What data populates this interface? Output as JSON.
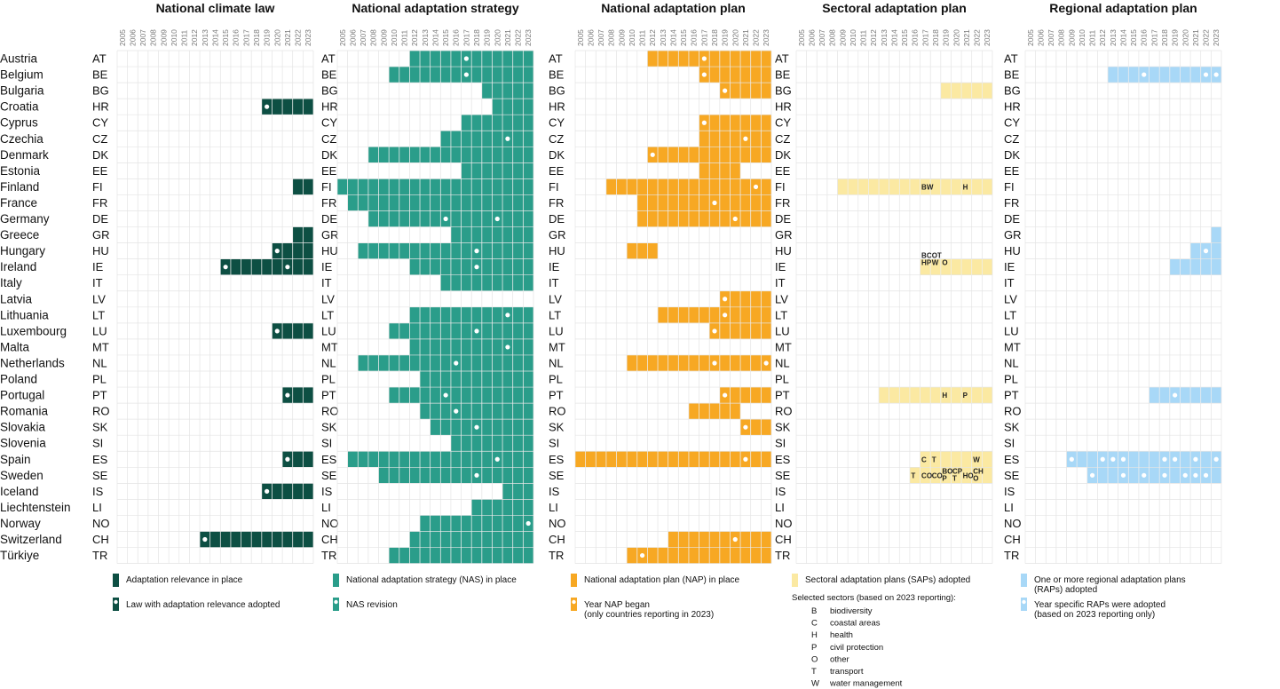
{
  "chart_data": {
    "type": "heatmap",
    "years": [
      2005,
      2006,
      2007,
      2008,
      2009,
      2010,
      2011,
      2012,
      2013,
      2014,
      2015,
      2016,
      2017,
      2018,
      2019,
      2020,
      2021,
      2022,
      2023
    ],
    "countries": [
      {
        "name": "Austria",
        "code": "AT"
      },
      {
        "name": "Belgium",
        "code": "BE"
      },
      {
        "name": "Bulgaria",
        "code": "BG"
      },
      {
        "name": "Croatia",
        "code": "HR"
      },
      {
        "name": "Cyprus",
        "code": "CY"
      },
      {
        "name": "Czechia",
        "code": "CZ"
      },
      {
        "name": "Denmark",
        "code": "DK"
      },
      {
        "name": "Estonia",
        "code": "EE"
      },
      {
        "name": "Finland",
        "code": "FI"
      },
      {
        "name": "France",
        "code": "FR"
      },
      {
        "name": "Germany",
        "code": "DE"
      },
      {
        "name": "Greece",
        "code": "GR"
      },
      {
        "name": "Hungary",
        "code": "HU"
      },
      {
        "name": "Ireland",
        "code": "IE"
      },
      {
        "name": "Italy",
        "code": "IT"
      },
      {
        "name": "Latvia",
        "code": "LV"
      },
      {
        "name": "Lithuania",
        "code": "LT"
      },
      {
        "name": "Luxembourg",
        "code": "LU"
      },
      {
        "name": "Malta",
        "code": "MT"
      },
      {
        "name": "Netherlands",
        "code": "NL"
      },
      {
        "name": "Poland",
        "code": "PL"
      },
      {
        "name": "Portugal",
        "code": "PT"
      },
      {
        "name": "Romania",
        "code": "RO"
      },
      {
        "name": "Slovakia",
        "code": "SK"
      },
      {
        "name": "Slovenia",
        "code": "SI"
      },
      {
        "name": "Spain",
        "code": "ES"
      },
      {
        "name": "Sweden",
        "code": "SE"
      },
      {
        "name": "Iceland",
        "code": "IS"
      },
      {
        "name": "Liechtenstein",
        "code": "LI"
      },
      {
        "name": "Norway",
        "code": "NO"
      },
      {
        "name": "Switzerland",
        "code": "CH"
      },
      {
        "name": "Türkiye",
        "code": "TR"
      }
    ],
    "panels": [
      {
        "title": "National climate law",
        "color": "#0d4f43",
        "dot_color": "#ffffff",
        "spans": {
          "HR": [
            2019,
            2023
          ],
          "FI": [
            2022,
            2023
          ],
          "GR": [
            2022,
            2023
          ],
          "HU": [
            2020,
            2023
          ],
          "IE": [
            2015,
            2023
          ],
          "LU": [
            2020,
            2023
          ],
          "PT": [
            2021,
            2023
          ],
          "ES": [
            2021,
            2023
          ],
          "IS": [
            2019,
            2023
          ],
          "CH": [
            2013,
            2023
          ]
        },
        "dots": {
          "HR": [
            2019
          ],
          "HU": [
            2020
          ],
          "IE": [
            2015,
            2021
          ],
          "LU": [
            2020
          ],
          "PT": [
            2021
          ],
          "ES": [
            2021
          ],
          "IS": [
            2019
          ],
          "CH": [
            2013
          ]
        },
        "legend": {
          "fill_label": "Adaptation relevance in place",
          "dot_label": "Law with adaptation relevance adopted"
        }
      },
      {
        "title": "National adaptation strategy",
        "color": "#2a9d8a",
        "dot_color": "#ffffff",
        "spans": {
          "AT": [
            2012,
            2023
          ],
          "BE": [
            2010,
            2023
          ],
          "BG": [
            2019,
            2023
          ],
          "HR": [
            2020,
            2023
          ],
          "CY": [
            2017,
            2023
          ],
          "CZ": [
            2015,
            2023
          ],
          "DK": [
            2008,
            2023
          ],
          "EE": [
            2017,
            2023
          ],
          "FI": [
            2005,
            2023
          ],
          "FR": [
            2006,
            2023
          ],
          "DE": [
            2008,
            2023
          ],
          "GR": [
            2016,
            2023
          ],
          "HU": [
            2007,
            2023
          ],
          "IE": [
            2012,
            2023
          ],
          "IT": [
            2015,
            2023
          ],
          "LT": [
            2012,
            2023
          ],
          "LU": [
            2010,
            2023
          ],
          "MT": [
            2012,
            2023
          ],
          "NL": [
            2007,
            2023
          ],
          "PL": [
            2013,
            2023
          ],
          "PT": [
            2010,
            2023
          ],
          "RO": [
            2013,
            2023
          ],
          "SK": [
            2014,
            2023
          ],
          "SI": [
            2016,
            2023
          ],
          "ES": [
            2006,
            2023
          ],
          "SE": [
            2009,
            2023
          ],
          "IS": [
            2021,
            2023
          ],
          "LI": [
            2018,
            2023
          ],
          "NO": [
            2013,
            2023
          ],
          "CH": [
            2012,
            2023
          ],
          "TR": [
            2010,
            2023
          ]
        },
        "dots": {
          "AT": [
            2017
          ],
          "BE": [
            2017
          ],
          "CZ": [
            2021
          ],
          "DE": [
            2015,
            2020
          ],
          "HU": [
            2018
          ],
          "IE": [
            2018
          ],
          "LT": [
            2021
          ],
          "LU": [
            2018
          ],
          "MT": [
            2021
          ],
          "NL": [
            2016
          ],
          "PT": [
            2015
          ],
          "RO": [
            2016
          ],
          "SK": [
            2018
          ],
          "ES": [
            2020
          ],
          "SE": [
            2018
          ],
          "NO": [
            2023
          ]
        },
        "legend": {
          "fill_label": "National adaptation strategy (NAS) in place",
          "dot_label": "NAS revision"
        }
      },
      {
        "title": "National adaptation plan",
        "color": "#f7a823",
        "dot_color": "#ffffff",
        "spans": {
          "AT": [
            2012,
            2023
          ],
          "BE": [
            2017,
            2023
          ],
          "BG": [
            2019,
            2023
          ],
          "CY": [
            2017,
            2023
          ],
          "CZ": [
            2017,
            2023
          ],
          "DK": [
            2012,
            2023
          ],
          "EE": [
            2017,
            2020
          ],
          "FI": [
            2008,
            2023
          ],
          "FR": [
            2011,
            2023
          ],
          "DE": [
            2011,
            2023
          ],
          "HU": [
            2010,
            2012
          ],
          "LV": [
            2019,
            2023
          ],
          "LT": [
            2013,
            2023
          ],
          "LU": [
            2018,
            2023
          ],
          "NL": [
            2010,
            2023
          ],
          "PT": [
            2019,
            2023
          ],
          "RO": [
            2016,
            2020
          ],
          "SK": [
            2021,
            2023
          ],
          "ES": [
            2005,
            2023
          ],
          "CH": [
            2014,
            2023
          ],
          "TR": [
            2010,
            2023
          ]
        },
        "dots": {
          "AT": [
            2017
          ],
          "BE": [
            2017
          ],
          "BG": [
            2019
          ],
          "CY": [
            2017
          ],
          "CZ": [
            2021
          ],
          "DK": [
            2012
          ],
          "FI": [
            2022
          ],
          "FR": [
            2018
          ],
          "DE": [
            2020
          ],
          "LV": [
            2019
          ],
          "LT": [
            2019
          ],
          "LU": [
            2018
          ],
          "NL": [
            2018,
            2023
          ],
          "PT": [
            2019
          ],
          "SK": [
            2021
          ],
          "ES": [
            2021
          ],
          "CH": [
            2020
          ],
          "TR": [
            2011
          ]
        },
        "legend": {
          "fill_label": "National adaptation plan (NAP) in place",
          "dot_label": "Year NAP began",
          "dot_label_2": "(only countries reporting in 2023)"
        }
      },
      {
        "title": "Sectoral adaptation plan",
        "color": "#fbe9a2",
        "dot_color": "#ffffff",
        "spans": {
          "BG": [
            2019,
            2023
          ],
          "FI": [
            2009,
            2023
          ],
          "IE": [
            2017,
            2023
          ],
          "PT": [
            2013,
            2023
          ],
          "ES": [
            2017,
            2023
          ],
          "SE": [
            2016,
            2023
          ]
        },
        "dots": {},
        "sector_labels": [
          {
            "code": "FI",
            "year": 2017,
            "line": 0,
            "text": "BW"
          },
          {
            "code": "FI",
            "year": 2021,
            "line": 0,
            "text": "H"
          },
          {
            "code": "IE",
            "year": 2017,
            "line": 1,
            "text": "BC"
          },
          {
            "code": "IE",
            "year": 2018,
            "line": 1,
            "text": "OT"
          },
          {
            "code": "IE",
            "year": 2017,
            "line": 2,
            "text": "HP"
          },
          {
            "code": "IE",
            "year": 2018,
            "line": 2,
            "text": "W"
          },
          {
            "code": "IE",
            "year": 2019,
            "line": 2,
            "text": "O"
          },
          {
            "code": "PT",
            "year": 2019,
            "line": 0,
            "text": "H"
          },
          {
            "code": "PT",
            "year": 2021,
            "line": 0,
            "text": "P"
          },
          {
            "code": "ES",
            "year": 2017,
            "line": 0,
            "text": "C"
          },
          {
            "code": "ES",
            "year": 2018,
            "line": 0,
            "text": "T"
          },
          {
            "code": "ES",
            "year": 2022,
            "line": 0,
            "text": "W"
          },
          {
            "code": "SE",
            "year": 2016,
            "line": 0,
            "text": "T"
          },
          {
            "code": "SE",
            "year": 2017,
            "line": 0,
            "text": "CO"
          },
          {
            "code": "SE",
            "year": 2018,
            "line": 0,
            "text": "CO"
          },
          {
            "code": "SE",
            "year": 2019,
            "line": 1,
            "text": "BO"
          },
          {
            "code": "SE",
            "year": 2020,
            "line": 1,
            "text": "CP"
          },
          {
            "code": "SE",
            "year": 2019,
            "line": 2,
            "text": "P"
          },
          {
            "code": "SE",
            "year": 2020,
            "line": 2,
            "text": "T"
          },
          {
            "code": "SE",
            "year": 2021,
            "line": 0,
            "text": "HO"
          },
          {
            "code": "SE",
            "year": 2022,
            "line": 1,
            "text": "CH"
          },
          {
            "code": "SE",
            "year": 2022,
            "line": 2,
            "text": "O"
          }
        ],
        "legend": {
          "fill_label": "Sectoral adaptation plans (SAPs) adopted",
          "sectors_title": "Selected sectors (based on 2023 reporting):",
          "sectors": [
            {
              "code": "B",
              "label": "biodiversity"
            },
            {
              "code": "C",
              "label": "coastal areas"
            },
            {
              "code": "H",
              "label": "health"
            },
            {
              "code": "P",
              "label": "civil protection"
            },
            {
              "code": "O",
              "label": "other"
            },
            {
              "code": "T",
              "label": "transport"
            },
            {
              "code": "W",
              "label": "water management"
            }
          ]
        }
      },
      {
        "title": "Regional adaptation plan",
        "color": "#a8d8f7",
        "dot_color": "#ffffff",
        "spans": {
          "BE": [
            2013,
            2023
          ],
          "GR": [
            2023,
            2023
          ],
          "HU": [
            2021,
            2023
          ],
          "IE": [
            2019,
            2023
          ],
          "PT": [
            2017,
            2023
          ],
          "ES": [
            2009,
            2023
          ],
          "SE": [
            2011,
            2023
          ]
        },
        "dots": {
          "BE": [
            2016,
            2022,
            2023
          ],
          "HU": [
            2022
          ],
          "PT": [
            2019
          ],
          "ES": [
            2009,
            2012,
            2013,
            2014,
            2018,
            2019,
            2021,
            2023
          ],
          "SE": [
            2011,
            2014,
            2016,
            2018,
            2020,
            2021,
            2022
          ]
        },
        "legend": {
          "fill_label": "One or more regional adaptation plans",
          "fill_label_2": "(RAPs) adopted",
          "dot_label": "Year specific RAPs were adopted",
          "dot_label_2": "(based on 2023 reporting only)"
        }
      }
    ]
  }
}
